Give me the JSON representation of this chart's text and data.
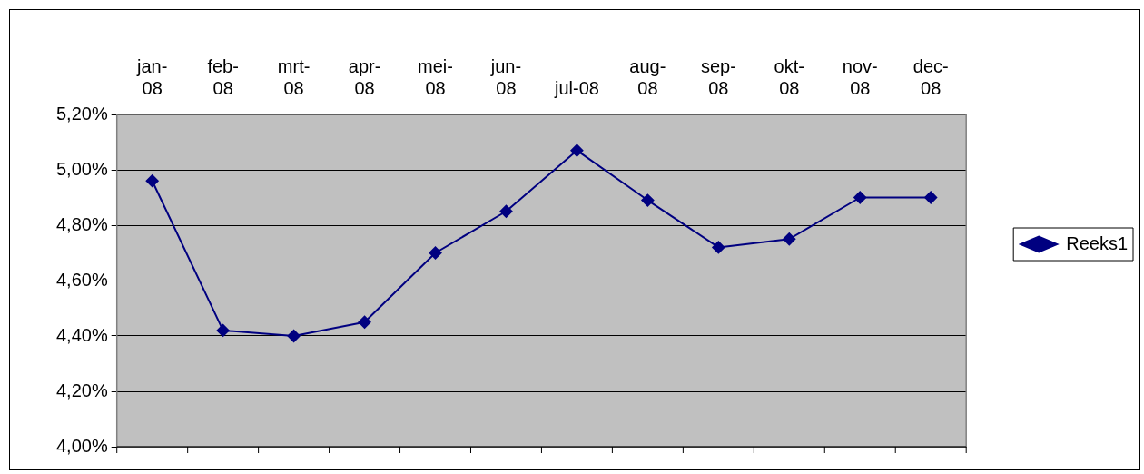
{
  "chart_data": {
    "type": "line",
    "categories": [
      "jan-08",
      "feb-08",
      "mrt-08",
      "apr-08",
      "mei-08",
      "jun-08",
      "jul-08",
      "aug-08",
      "sep-08",
      "okt-08",
      "nov-08",
      "dec-08"
    ],
    "series": [
      {
        "name": "Reeks1",
        "color": "#000080",
        "values": [
          4.96,
          4.42,
          4.4,
          4.45,
          4.7,
          4.85,
          5.07,
          4.89,
          4.72,
          4.75,
          4.9,
          4.9
        ]
      }
    ],
    "ylim": [
      4.0,
      5.2
    ],
    "yticks": [
      {
        "value": 4.0,
        "label": "4,00%"
      },
      {
        "value": 4.2,
        "label": "4,20%"
      },
      {
        "value": 4.4,
        "label": "4,40%"
      },
      {
        "value": 4.6,
        "label": "4,60%"
      },
      {
        "value": 4.8,
        "label": "4,80%"
      },
      {
        "value": 5.0,
        "label": "5,00%"
      },
      {
        "value": 5.2,
        "label": "5,20%"
      }
    ],
    "grid": "y",
    "legend": "right",
    "marker": "diamond",
    "line_style": "solid"
  }
}
